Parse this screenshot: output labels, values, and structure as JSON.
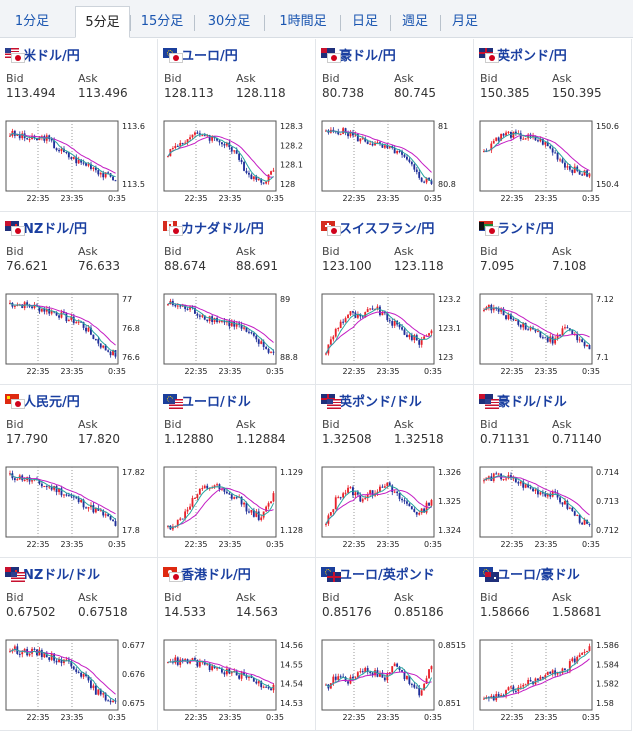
{
  "tabs": [
    "1分足",
    "5分足",
    "15分足",
    "30分足",
    "1時間足",
    "日足",
    "週足",
    "月足"
  ],
  "active_tab": 1,
  "labels": {
    "bid": "Bid",
    "ask": "Ask"
  },
  "time_labels": [
    "22:35",
    "23:35",
    "0:35"
  ],
  "colors": {
    "up": "#e8212a",
    "down": "#1f2f9a",
    "ma_long": "#c41ec4",
    "ma_short": "#2aa5a0"
  },
  "pairs": [
    {
      "name": "米ドル/円",
      "flags": [
        "us",
        "jp"
      ],
      "bid": "113.494",
      "ask": "113.496",
      "yticks": [
        "113.6",
        "113.5"
      ],
      "trend": [
        0.85,
        0.8,
        0.75,
        0.8,
        0.62,
        0.5,
        0.4,
        0.35,
        0.2,
        0.15
      ]
    },
    {
      "name": "ユーロ/円",
      "flags": [
        "eu",
        "jp"
      ],
      "bid": "128.113",
      "ask": "128.118",
      "yticks": [
        "128.3",
        "128.2",
        "128.1",
        "128"
      ],
      "trend": [
        0.55,
        0.7,
        0.8,
        0.85,
        0.75,
        0.7,
        0.45,
        0.2,
        0.1,
        0.25
      ]
    },
    {
      "name": "豪ドル/円",
      "flags": [
        "au",
        "jp"
      ],
      "bid": "80.738",
      "ask": "80.745",
      "yticks": [
        "81",
        "80.8"
      ],
      "trend": [
        0.85,
        0.9,
        0.85,
        0.75,
        0.7,
        0.62,
        0.58,
        0.4,
        0.15,
        0.1
      ]
    },
    {
      "name": "英ポンド/円",
      "flags": [
        "gb",
        "jp"
      ],
      "bid": "150.385",
      "ask": "150.395",
      "yticks": [
        "150.6",
        "150.4"
      ],
      "trend": [
        0.55,
        0.78,
        0.85,
        0.8,
        0.78,
        0.72,
        0.55,
        0.35,
        0.25,
        0.2
      ]
    },
    {
      "name": "NZドル/円",
      "flags": [
        "nz",
        "jp"
      ],
      "bid": "76.621",
      "ask": "76.633",
      "yticks": [
        "77",
        "76.8",
        "76.6"
      ],
      "trend": [
        0.9,
        0.88,
        0.85,
        0.8,
        0.75,
        0.65,
        0.6,
        0.4,
        0.2,
        0.1
      ]
    },
    {
      "name": "カナダドル/円",
      "flags": [
        "ca",
        "jp"
      ],
      "bid": "88.674",
      "ask": "88.691",
      "yticks": [
        "89",
        "88.8"
      ],
      "trend": [
        0.9,
        0.85,
        0.8,
        0.7,
        0.65,
        0.6,
        0.55,
        0.4,
        0.25,
        0.1
      ]
    },
    {
      "name": "スイスフラン/円",
      "flags": [
        "ch",
        "jp"
      ],
      "bid": "123.100",
      "ask": "123.118",
      "yticks": [
        "123.2",
        "123.1",
        "123"
      ],
      "trend": [
        0.15,
        0.55,
        0.75,
        0.65,
        0.85,
        0.7,
        0.55,
        0.4,
        0.3,
        0.5
      ]
    },
    {
      "name": "ランド/円",
      "flags": [
        "za",
        "jp"
      ],
      "bid": "7.095",
      "ask": "7.108",
      "yticks": [
        "7.12",
        "7.1"
      ],
      "trend": [
        0.85,
        0.8,
        0.7,
        0.6,
        0.5,
        0.4,
        0.3,
        0.55,
        0.35,
        0.15
      ]
    },
    {
      "name": "人民元/円",
      "flags": [
        "cn",
        "jp"
      ],
      "bid": "17.790",
      "ask": "17.820",
      "yticks": [
        "17.82",
        "17.8"
      ],
      "trend": [
        0.9,
        0.88,
        0.82,
        0.75,
        0.7,
        0.6,
        0.5,
        0.4,
        0.3,
        0.15
      ]
    },
    {
      "name": "ユーロ/ドル",
      "flags": [
        "eu",
        "us"
      ],
      "bid": "1.12880",
      "ask": "1.12884",
      "yticks": [
        "1.129",
        "1.128"
      ],
      "trend": [
        0.1,
        0.2,
        0.5,
        0.7,
        0.75,
        0.6,
        0.55,
        0.35,
        0.25,
        0.6
      ]
    },
    {
      "name": "英ポンド/ドル",
      "flags": [
        "gb",
        "us"
      ],
      "bid": "1.32508",
      "ask": "1.32518",
      "yticks": [
        "1.326",
        "1.325",
        "1.324"
      ],
      "trend": [
        0.15,
        0.6,
        0.7,
        0.55,
        0.65,
        0.8,
        0.6,
        0.45,
        0.3,
        0.55
      ]
    },
    {
      "name": "豪ドル/ドル",
      "flags": [
        "au",
        "us"
      ],
      "bid": "0.71131",
      "ask": "0.71140",
      "yticks": [
        "0.714",
        "0.713",
        "0.712"
      ],
      "trend": [
        0.85,
        0.9,
        0.88,
        0.8,
        0.7,
        0.65,
        0.6,
        0.45,
        0.25,
        0.1
      ]
    },
    {
      "name": "NZドル/ドル",
      "flags": [
        "nz",
        "us"
      ],
      "bid": "0.67502",
      "ask": "0.67518",
      "yticks": [
        "0.677",
        "0.676",
        "0.675"
      ],
      "trend": [
        0.9,
        0.88,
        0.85,
        0.82,
        0.75,
        0.7,
        0.55,
        0.3,
        0.15,
        0.1
      ]
    },
    {
      "name": "香港ドル/円",
      "flags": [
        "hk",
        "jp"
      ],
      "bid": "14.533",
      "ask": "14.563",
      "yticks": [
        "14.56",
        "14.55",
        "14.54",
        "14.53"
      ],
      "trend": [
        0.75,
        0.7,
        0.72,
        0.65,
        0.6,
        0.55,
        0.5,
        0.45,
        0.35,
        0.3
      ]
    },
    {
      "name": "ユーロ/英ポンド",
      "flags": [
        "eu",
        "gb"
      ],
      "bid": "0.85176",
      "ask": "0.85186",
      "yticks": [
        "0.8515",
        "0.851"
      ],
      "trend": [
        0.3,
        0.5,
        0.4,
        0.6,
        0.55,
        0.45,
        0.7,
        0.4,
        0.2,
        0.65
      ]
    },
    {
      "name": "ユーロ/豪ドル",
      "flags": [
        "eu",
        "au"
      ],
      "bid": "1.58666",
      "ask": "1.58681",
      "yticks": [
        "1.586",
        "1.584",
        "1.582",
        "1.58"
      ],
      "trend": [
        0.1,
        0.15,
        0.25,
        0.3,
        0.4,
        0.45,
        0.55,
        0.6,
        0.8,
        0.9
      ]
    }
  ]
}
